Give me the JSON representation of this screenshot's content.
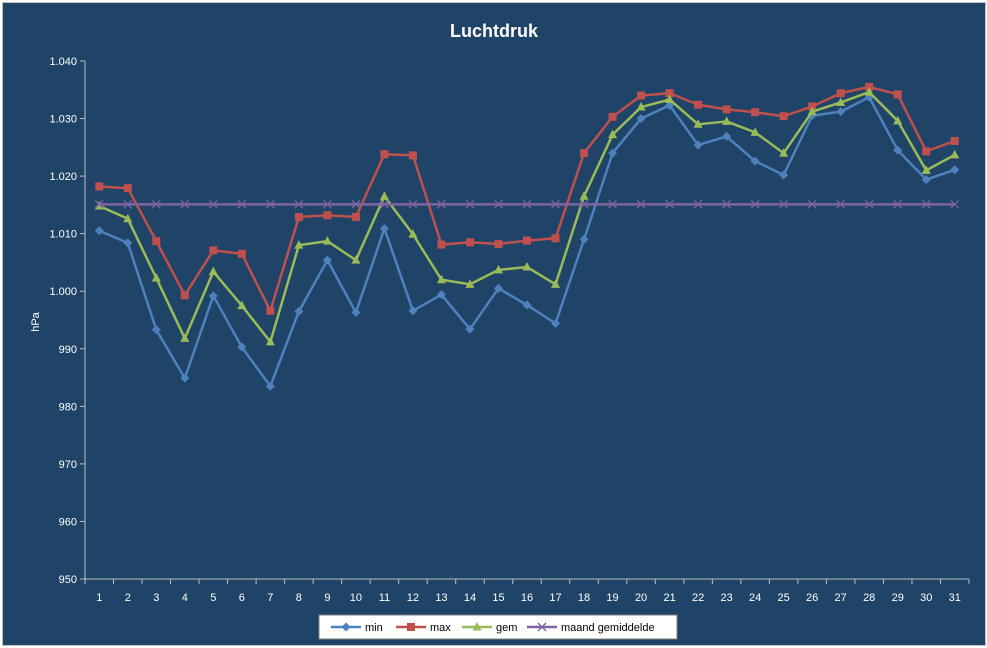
{
  "chart_data": {
    "type": "line",
    "title": "Luchtdruk",
    "xlabel": "",
    "ylabel": "hPa",
    "ylim": [
      950,
      1040
    ],
    "yticks": [
      "950",
      "960",
      "970",
      "980",
      "990",
      "1.000",
      "1.010",
      "1.020",
      "1.030",
      "1.040"
    ],
    "categories": [
      "1",
      "2",
      "3",
      "4",
      "5",
      "6",
      "7",
      "8",
      "9",
      "10",
      "11",
      "12",
      "13",
      "14",
      "15",
      "16",
      "17",
      "18",
      "19",
      "20",
      "21",
      "22",
      "23",
      "24",
      "25",
      "26",
      "27",
      "28",
      "29",
      "30",
      "31"
    ],
    "grid": false,
    "legend": "bottom",
    "series": [
      {
        "name": "min",
        "color": "#4f81bd",
        "marker": "diamond",
        "values": [
          1010.5,
          1008.4,
          993.3,
          984.9,
          999.2,
          990.3,
          983.5,
          996.5,
          1005.4,
          996.3,
          1010.9,
          996.6,
          999.4,
          993.4,
          1000.5,
          997.6,
          994.4,
          1009.0,
          1024.0,
          1030.0,
          1032.3,
          1025.4,
          1026.9,
          1022.6,
          1020.2,
          1030.5,
          1031.2,
          1033.7,
          1024.5,
          1019.4,
          1021.1
        ]
      },
      {
        "name": "max",
        "color": "#c0504d",
        "marker": "square",
        "values": [
          1018.2,
          1017.9,
          1008.7,
          999.3,
          1007.1,
          1006.5,
          996.6,
          1012.9,
          1013.2,
          1012.9,
          1023.8,
          1023.6,
          1008.1,
          1008.5,
          1008.2,
          1008.8,
          1009.2,
          1024.0,
          1030.3,
          1034.0,
          1034.4,
          1032.4,
          1031.6,
          1031.1,
          1030.4,
          1032.1,
          1034.4,
          1035.5,
          1034.2,
          1024.3,
          1026.1
        ]
      },
      {
        "name": "gem",
        "color": "#9bbb59",
        "marker": "triangle",
        "values": [
          1014.8,
          1012.6,
          1002.3,
          991.8,
          1003.4,
          997.5,
          991.2,
          1008.0,
          1008.7,
          1005.4,
          1016.5,
          1009.9,
          1002.0,
          1001.2,
          1003.7,
          1004.2,
          1001.2,
          1016.5,
          1027.2,
          1032.0,
          1033.3,
          1029.0,
          1029.5,
          1027.6,
          1024.0,
          1031.2,
          1032.8,
          1034.6,
          1029.6,
          1021.0,
          1023.7
        ]
      },
      {
        "name": "maand gemiddelde",
        "color": "#8064a2",
        "marker": "x",
        "values": [
          1015.1,
          1015.1,
          1015.1,
          1015.1,
          1015.1,
          1015.1,
          1015.1,
          1015.1,
          1015.1,
          1015.1,
          1015.1,
          1015.1,
          1015.1,
          1015.1,
          1015.1,
          1015.1,
          1015.1,
          1015.1,
          1015.1,
          1015.1,
          1015.1,
          1015.1,
          1015.1,
          1015.1,
          1015.1,
          1015.1,
          1015.1,
          1015.1,
          1015.1,
          1015.1,
          1015.1
        ]
      }
    ]
  }
}
